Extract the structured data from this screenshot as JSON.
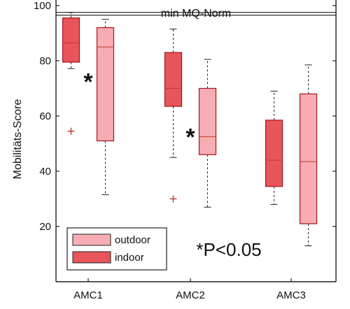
{
  "chart_data": {
    "type": "box",
    "ylabel": "Mobilitäts-Score",
    "xlabel": "",
    "ylim": [
      0,
      102
    ],
    "yticks": [
      20,
      40,
      60,
      80,
      100
    ],
    "categories": [
      "AMC1",
      "AMC2",
      "AMC3"
    ],
    "reference_lines": [
      {
        "label": "min MQ-Norm",
        "y_low": 96.5,
        "y_high": 97.5
      }
    ],
    "series": [
      {
        "name": "indoor",
        "color": "#e8555a",
        "edge_color": "#a8141a",
        "boxes": [
          {
            "category": "AMC1",
            "whisker_low": 77.2,
            "q1": 79.5,
            "median": 86.5,
            "q3": 95.5,
            "whisker_high": 97.5,
            "outliers": [
              54.5
            ]
          },
          {
            "category": "AMC2",
            "whisker_low": 45.0,
            "q1": 63.5,
            "median": 70.0,
            "q3": 83.0,
            "whisker_high": 91.5,
            "outliers": [
              30.0
            ]
          },
          {
            "category": "AMC3",
            "whisker_low": 28.0,
            "q1": 34.5,
            "median": 44.0,
            "q3": 58.5,
            "whisker_high": 69.0,
            "outliers": []
          }
        ]
      },
      {
        "name": "outdoor",
        "color": "#f7adb3",
        "edge_color": "#a8141a",
        "boxes": [
          {
            "category": "AMC1",
            "whisker_low": 31.5,
            "q1": 51.0,
            "median": 85.0,
            "q3": 92.0,
            "whisker_high": 95.0,
            "outliers": []
          },
          {
            "category": "AMC2",
            "whisker_low": 27.0,
            "q1": 46.0,
            "median": 52.5,
            "q3": 70.0,
            "whisker_high": 80.5,
            "outliers": []
          },
          {
            "category": "AMC3",
            "whisker_low": 13.0,
            "q1": 21.0,
            "median": 43.5,
            "q3": 68.0,
            "whisker_high": 78.5,
            "outliers": []
          }
        ]
      }
    ],
    "significance": [
      {
        "category": "AMC1",
        "symbol": "*",
        "y": 73
      },
      {
        "category": "AMC2",
        "symbol": "*",
        "y": 53
      }
    ],
    "annotation": "*P<0.05",
    "legend": {
      "position": "bottom-left",
      "entries": [
        {
          "series": "outdoor",
          "label": "outdoor"
        },
        {
          "series": "indoor",
          "label": "indoor"
        }
      ]
    }
  }
}
